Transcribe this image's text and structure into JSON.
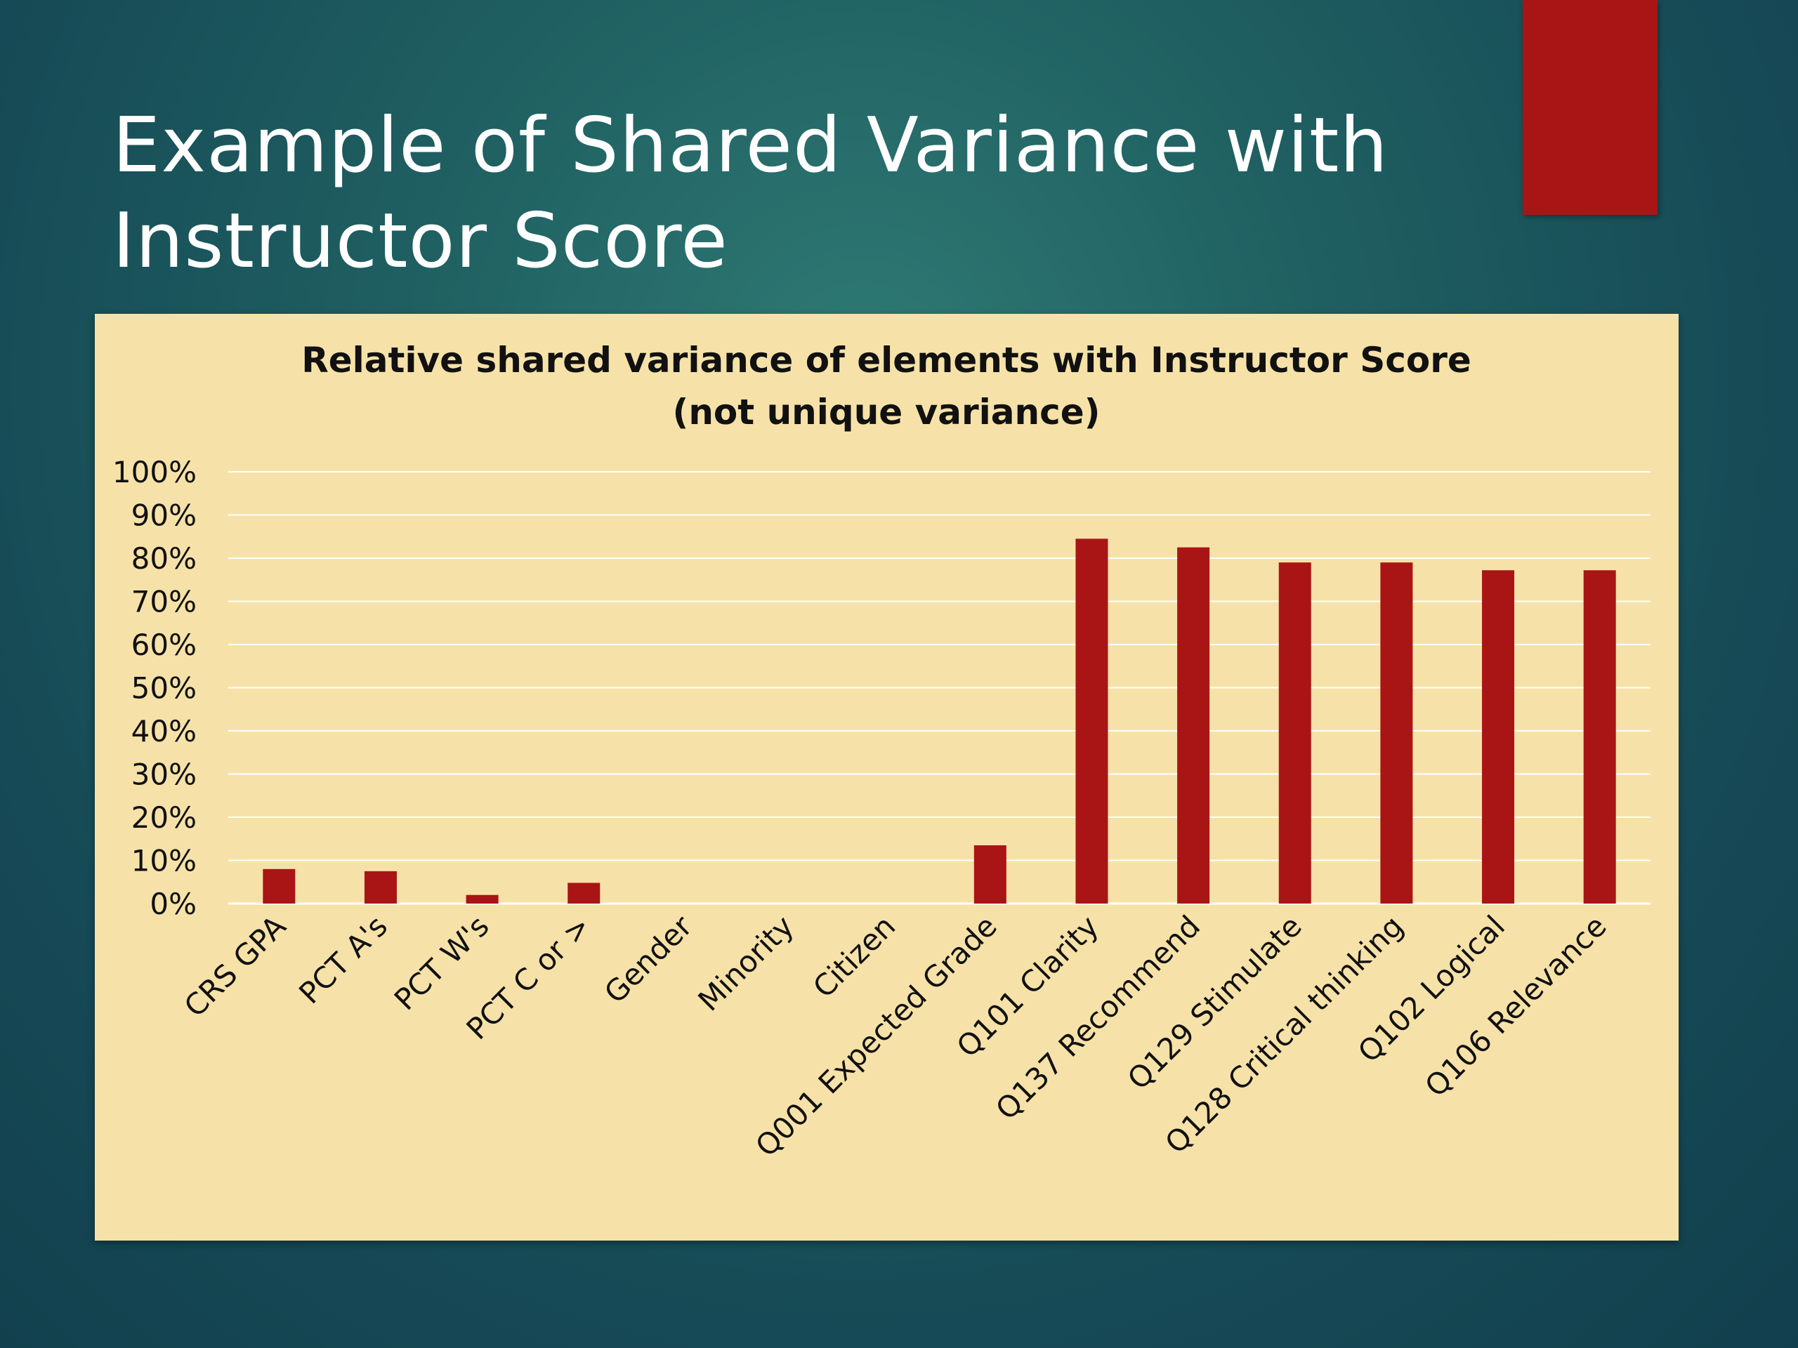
{
  "slide": {
    "title_lines": [
      "Example of Shared Variance with",
      "Instructor Score"
    ],
    "background_color": "#1b5560",
    "accent_color": "#a91515",
    "panel_color": "#f6e2a8"
  },
  "chart_data": {
    "type": "bar",
    "title_lines": [
      "Relative shared variance of elements with Instructor Score",
      "(not unique variance)"
    ],
    "categories": [
      "CRS GPA",
      "PCT A's",
      "PCT W's",
      "PCT C or >",
      "Gender",
      "Minority",
      "Citizen",
      "Q001 Expected Grade",
      "Q101 Clarity",
      "Q137 Recommend",
      "Q129 Stimulate",
      "Q128 Critical thinking",
      "Q102 Logical",
      "Q106 Relevance"
    ],
    "values": [
      0.08,
      0.075,
      0.02,
      0.048,
      0,
      0,
      0,
      0.135,
      0.845,
      0.825,
      0.79,
      0.79,
      0.772,
      0.772
    ],
    "ylim": [
      0,
      1
    ],
    "yticks": [
      0,
      0.1,
      0.2,
      0.3,
      0.4,
      0.5,
      0.6,
      0.7,
      0.8,
      0.9,
      1.0
    ],
    "ytick_labels": [
      "0%",
      "10%",
      "20%",
      "30%",
      "40%",
      "50%",
      "60%",
      "70%",
      "80%",
      "90%",
      "100%"
    ],
    "xlabel": "",
    "ylabel": "",
    "grid": true,
    "legend": "none",
    "bar_color": "#a91515",
    "gridline_color": "#ffffff"
  }
}
